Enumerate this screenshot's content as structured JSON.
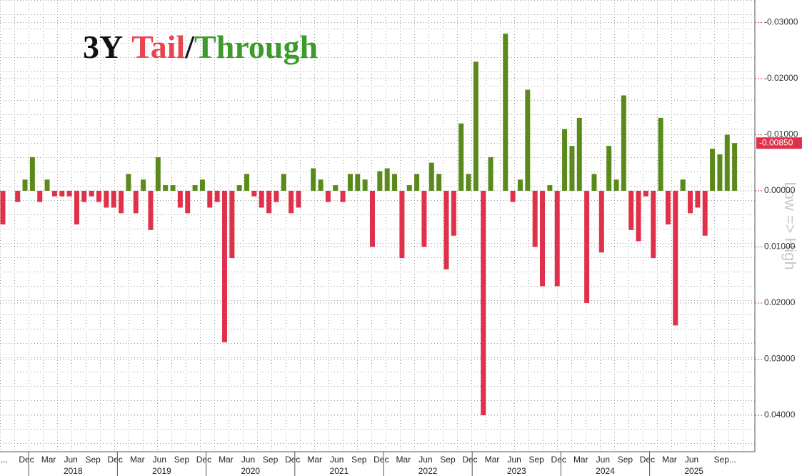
{
  "chart_data": {
    "type": "bar",
    "title_parts": [
      {
        "text": "3Y",
        "color": "#111111"
      },
      {
        "text": "Tail",
        "color": "#e8454f"
      },
      {
        "text": "/",
        "color": "#111111"
      },
      {
        "text": "Through",
        "color": "#3f9a2c"
      }
    ],
    "y_label": "Low => High",
    "categories": [
      "...",
      null,
      null,
      "Dec",
      null,
      null,
      "Mar",
      null,
      null,
      "Jun",
      null,
      null,
      "Sep",
      null,
      null,
      "Dec",
      null,
      null,
      "Mar",
      null,
      null,
      "Jun",
      null,
      null,
      "Sep",
      null,
      null,
      "Dec",
      null,
      null,
      "Mar",
      null,
      null,
      "Jun",
      null,
      null,
      "Sep",
      null,
      null,
      "Dec",
      null,
      null,
      "Mar",
      null,
      null,
      "Jun",
      null,
      null,
      "Sep",
      null,
      null,
      "Dec",
      null,
      null,
      "Mar",
      null,
      null,
      "Jun",
      null,
      null,
      "Sep",
      null,
      null,
      "Dec",
      null,
      null,
      "Mar",
      null,
      null,
      "Jun",
      null,
      null,
      "Sep",
      null,
      null,
      "Dec",
      null,
      null,
      "Mar",
      null,
      null,
      "Jun",
      null,
      null,
      "Sep",
      null,
      null,
      "Dec",
      null,
      null,
      "Mar",
      null,
      null,
      "Jun",
      null,
      null,
      "Sep...",
      null,
      null,
      null
    ],
    "years": [
      "2018",
      "2019",
      "2020",
      "2021",
      "2022",
      "2023",
      "2024",
      "2025"
    ],
    "values": [
      0.006,
      null,
      0.002,
      -0.002,
      -0.006,
      0.002,
      -0.002,
      0.001,
      0.001,
      0.001,
      0.006,
      0.002,
      0.001,
      0.002,
      0.003,
      0.003,
      0.004,
      -0.003,
      0.004,
      -0.002,
      0.007,
      -0.006,
      -0.001,
      -0.001,
      0.003,
      0.004,
      -0.001,
      -0.002,
      0.003,
      0.002,
      0.027,
      0.012,
      -0.001,
      -0.003,
      0.001,
      0.003,
      0.004,
      0.002,
      -0.003,
      0.004,
      0.003,
      null,
      -0.004,
      -0.002,
      0.002,
      -0.001,
      0.002,
      -0.003,
      -0.003,
      -0.002,
      0.01,
      -0.0035,
      -0.004,
      -0.003,
      0.012,
      -0.001,
      -0.003,
      0.01,
      -0.005,
      -0.003,
      0.014,
      0.008,
      -0.012,
      -0.003,
      -0.023,
      0.04,
      -0.006,
      null,
      -0.028,
      0.002,
      -0.002,
      -0.018,
      0.01,
      0.017,
      -0.001,
      0.017,
      -0.011,
      -0.008,
      -0.013,
      0.02,
      -0.003,
      0.011,
      -0.008,
      -0.002,
      -0.017,
      0.007,
      0.009,
      0.001,
      0.012,
      -0.013,
      0.006,
      0.024,
      -0.002,
      0.004,
      0.003,
      0.008,
      -0.0075,
      -0.0065,
      -0.01,
      -0.0085
    ],
    "value_labels": [
      null,
      null,
      null,
      null,
      null,
      null,
      null,
      null,
      null,
      null,
      null,
      null,
      null,
      null,
      null,
      null,
      null,
      null,
      null,
      null,
      null,
      null,
      null,
      null,
      null,
      null,
      null,
      null,
      null,
      null,
      null,
      null,
      null,
      null,
      null,
      null,
      null,
      null,
      null,
      null,
      null,
      null,
      null,
      null,
      null,
      null,
      null,
      null,
      null,
      null,
      null,
      null,
      null,
      null,
      null,
      null,
      null,
      null,
      null,
      null,
      null,
      null,
      null,
      null,
      null,
      null,
      null,
      null,
      null,
      null,
      null,
      null,
      null,
      null,
      null,
      null,
      null,
      null,
      null,
      null,
      null,
      null,
      null,
      null,
      null,
      null,
      null,
      null,
      null,
      null,
      null,
      null,
      null,
      null,
      null,
      null,
      null,
      null,
      null,
      "-0.00850"
    ],
    "color_positive": "#e0314b",
    "color_negative": "#5a8a1a",
    "label_box_color": "#e0314b",
    "ylim": [
      0.0465,
      -0.034
    ],
    "yticks": [
      {
        "value": -0.03,
        "label": "-0.03000"
      },
      {
        "value": -0.02,
        "label": "-0.02000"
      },
      {
        "value": -0.01,
        "label": "-0.01000"
      },
      {
        "value": 0,
        "label": "0.00000"
      },
      {
        "value": 0.01,
        "label": "0.01000"
      },
      {
        "value": 0.02,
        "label": "0.02000"
      },
      {
        "value": 0.03,
        "label": "0.03000"
      },
      {
        "value": 0.04,
        "label": "0.04000"
      }
    ],
    "grid": true
  }
}
